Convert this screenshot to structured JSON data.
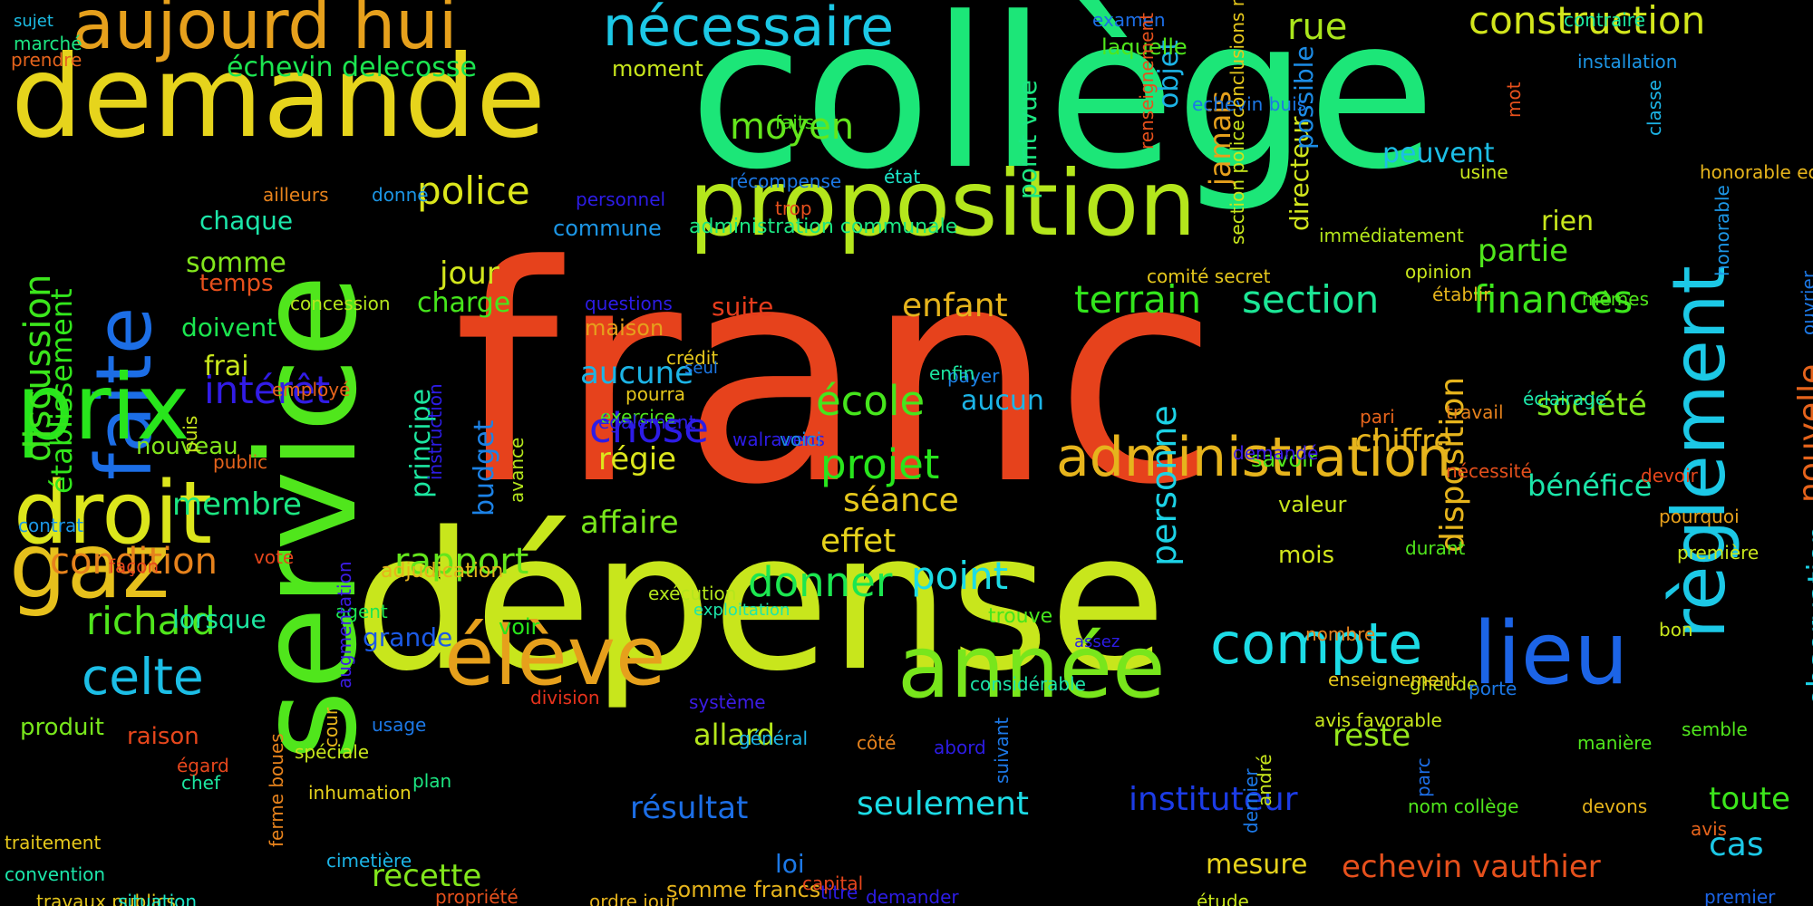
{
  "words": [
    {
      "text": "franc",
      "color": "#e6421c"
    },
    {
      "text": "dépense",
      "color": "#c8e61c"
    },
    {
      "text": "collège",
      "color": "#1ce678"
    },
    {
      "text": "service",
      "color": "#50e61c"
    },
    {
      "text": "demande",
      "color": "#e6d41c"
    },
    {
      "text": "proposition",
      "color": "#b4e61c"
    },
    {
      "text": "faite",
      "color": "#1c6ee6"
    },
    {
      "text": "prix",
      "color": "#28e61c"
    },
    {
      "text": "droit",
      "color": "#dce61c"
    },
    {
      "text": "gaz",
      "color": "#e6c01c"
    },
    {
      "text": "aujourd hui",
      "color": "#e6a01c"
    },
    {
      "text": "nécessaire",
      "color": "#1cc8e6"
    },
    {
      "text": "administration",
      "color": "#e6b41c"
    },
    {
      "text": "année",
      "color": "#78e61c"
    },
    {
      "text": "élève",
      "color": "#e6a01c"
    },
    {
      "text": "lieu",
      "color": "#1c64e6"
    },
    {
      "text": "règlement",
      "color": "#1cc8e6"
    },
    {
      "text": "compte",
      "color": "#1cdce6"
    },
    {
      "text": "construction",
      "color": "#d2e61c"
    },
    {
      "text": "terrain",
      "color": "#32e61c"
    },
    {
      "text": "section",
      "color": "#1ce696"
    },
    {
      "text": "finances",
      "color": "#3ce61c"
    },
    {
      "text": "discussion",
      "color": "#3ce61c"
    },
    {
      "text": "établissement",
      "color": "#32e61c"
    },
    {
      "text": "celte",
      "color": "#1cbee6"
    },
    {
      "text": "richald",
      "color": "#50e61c"
    },
    {
      "text": "condition",
      "color": "#e6821c"
    },
    {
      "text": "rapport",
      "color": "#64e61c"
    },
    {
      "text": "point",
      "color": "#1cdce6"
    },
    {
      "text": "donner",
      "color": "#1ce650"
    },
    {
      "text": "projet",
      "color": "#28e61c"
    },
    {
      "text": "école",
      "color": "#46e61c"
    },
    {
      "text": "chose",
      "color": "#2d1ce6"
    },
    {
      "text": "intérêt",
      "color": "#321ce6"
    },
    {
      "text": "police",
      "color": "#dce61c"
    },
    {
      "text": "moyen",
      "color": "#64e61c"
    },
    {
      "text": "rue",
      "color": "#aae61c"
    },
    {
      "text": "personne",
      "color": "#1cd2e6"
    },
    {
      "text": "disposition",
      "color": "#e6b41c"
    },
    {
      "text": "directeur",
      "color": "#d2e61c"
    },
    {
      "text": "nouvelle",
      "color": "#e6641c"
    },
    {
      "text": "observation",
      "color": "#1cd2e6"
    },
    {
      "text": "principe",
      "color": "#1ce6a0"
    },
    {
      "text": "budget",
      "color": "#1c82e6"
    },
    {
      "text": "chiffre",
      "color": "#e6b41c"
    },
    {
      "text": "société",
      "color": "#82e61c"
    },
    {
      "text": "bénéfice",
      "color": "#1ce6aa"
    },
    {
      "text": "enfant",
      "color": "#e6b41c"
    },
    {
      "text": "séance",
      "color": "#e6c81c"
    },
    {
      "text": "effet",
      "color": "#e6d21c"
    },
    {
      "text": "affaire",
      "color": "#78e61c"
    },
    {
      "text": "régie",
      "color": "#dce61c"
    },
    {
      "text": "aucune",
      "color": "#1cb4e6"
    },
    {
      "text": "aucun",
      "color": "#1cb4e6"
    },
    {
      "text": "suite",
      "color": "#e63c1c"
    },
    {
      "text": "partie",
      "color": "#50e61c"
    },
    {
      "text": "toute",
      "color": "#3ce61c"
    },
    {
      "text": "cas",
      "color": "#1cc8e6"
    },
    {
      "text": "seulement",
      "color": "#1cdce6"
    },
    {
      "text": "instituteur",
      "color": "#1c3ce6"
    },
    {
      "text": "résultat",
      "color": "#1c6ee6"
    },
    {
      "text": "allard",
      "color": "#b4e61c"
    },
    {
      "text": "recette",
      "color": "#82e61c"
    },
    {
      "text": "reste",
      "color": "#96e61c"
    },
    {
      "text": "echevin vauthier",
      "color": "#e6501c"
    },
    {
      "text": "mesure",
      "color": "#e6d21c"
    },
    {
      "text": "somme francs",
      "color": "#e6b41c"
    },
    {
      "text": "loi",
      "color": "#1c78e6"
    },
    {
      "text": "jour",
      "color": "#d2e61c"
    },
    {
      "text": "charge",
      "color": "#46e61c"
    },
    {
      "text": "membre",
      "color": "#1ce682"
    },
    {
      "text": "somme",
      "color": "#82e61c"
    },
    {
      "text": "chaque",
      "color": "#1ce6aa"
    },
    {
      "text": "temps",
      "color": "#e6501c"
    },
    {
      "text": "doivent",
      "color": "#1ce650"
    },
    {
      "text": "frai",
      "color": "#c8e61c"
    },
    {
      "text": "nouveau",
      "color": "#82e61c"
    },
    {
      "text": "lorsque",
      "color": "#1ce6a0"
    },
    {
      "text": "raison",
      "color": "#e6461c"
    },
    {
      "text": "produit",
      "color": "#78e61c"
    },
    {
      "text": "grande",
      "color": "#1c5ae6"
    },
    {
      "text": "échevin delecosse",
      "color": "#1ce650"
    },
    {
      "text": "peuvent",
      "color": "#1cbee6"
    },
    {
      "text": "rien",
      "color": "#c8e61c"
    },
    {
      "text": "jamais",
      "color": "#e6a01c"
    },
    {
      "text": "objet",
      "color": "#1cb4e6"
    },
    {
      "text": "possible",
      "color": "#1c8ce6"
    },
    {
      "text": "point vue",
      "color": "#1ce682"
    },
    {
      "text": "voir",
      "color": "#28e61c"
    },
    {
      "text": "mois",
      "color": "#d2e61c"
    },
    {
      "text": "savoir",
      "color": "#50e61c"
    },
    {
      "text": "valeur",
      "color": "#c8e61c"
    },
    {
      "text": "moment",
      "color": "#c8e61c"
    },
    {
      "text": "laquelle",
      "color": "#50e61c"
    },
    {
      "text": "examen",
      "color": "#1c6ee6"
    },
    {
      "text": "contraire",
      "color": "#1ce6a0"
    },
    {
      "text": "installation",
      "color": "#1c96e6"
    },
    {
      "text": "marché",
      "color": "#1ce682"
    },
    {
      "text": "sujet",
      "color": "#1cbee6"
    },
    {
      "text": "prendre",
      "color": "#e6641c"
    },
    {
      "text": "faits",
      "color": "#50e61c"
    },
    {
      "text": "récompense",
      "color": "#1c78e6"
    },
    {
      "text": "état",
      "color": "#1ce6c8"
    },
    {
      "text": "trop",
      "color": "#e6501c"
    },
    {
      "text": "personnel",
      "color": "#2d1ce6"
    },
    {
      "text": "commune",
      "color": "#1c96e6"
    },
    {
      "text": "administration communale",
      "color": "#1ce682"
    },
    {
      "text": "immédiatement",
      "color": "#b4e61c"
    },
    {
      "text": "donné",
      "color": "#1c96e6"
    },
    {
      "text": "ailleurs",
      "color": "#e6821c"
    },
    {
      "text": "concession",
      "color": "#b4e61c"
    },
    {
      "text": "questions",
      "color": "#2d1ce6"
    },
    {
      "text": "maison",
      "color": "#e6a01c"
    },
    {
      "text": "crédit",
      "color": "#e6c81c"
    },
    {
      "text": "seul",
      "color": "#1c78e6"
    },
    {
      "text": "payer",
      "color": "#1c82e6"
    },
    {
      "text": "enfin",
      "color": "#1ce6a0"
    },
    {
      "text": "pourra",
      "color": "#e6c81c"
    },
    {
      "text": "exercice",
      "color": "#50e61c"
    },
    {
      "text": "également",
      "color": "#2d1ce6"
    },
    {
      "text": "walravens",
      "color": "#2d1ce6"
    },
    {
      "text": "voici",
      "color": "#1c8ce6"
    },
    {
      "text": "employé",
      "color": "#e6641c"
    },
    {
      "text": "public",
      "color": "#e6641c"
    },
    {
      "text": "puis",
      "color": "#c8e61c"
    },
    {
      "text": "avance",
      "color": "#b4e61c"
    },
    {
      "text": "contrat",
      "color": "#1c96e6"
    },
    {
      "text": "façon",
      "color": "#e6461c"
    },
    {
      "text": "vote",
      "color": "#e6461c"
    },
    {
      "text": "instruction",
      "color": "#2d1ce6"
    },
    {
      "text": "adjudication",
      "color": "#e6b41c"
    },
    {
      "text": "agent",
      "color": "#1ce650"
    },
    {
      "text": "spéciale",
      "color": "#c8e61c"
    },
    {
      "text": "trouve",
      "color": "#46e61c"
    },
    {
      "text": "exécution",
      "color": "#b4e61c"
    },
    {
      "text": "assez",
      "color": "#2d1ce6"
    },
    {
      "text": "considérable",
      "color": "#1ce6aa"
    },
    {
      "text": "exploitation",
      "color": "#1ce6aa"
    },
    {
      "text": "système",
      "color": "#3c1ce6"
    },
    {
      "text": "augmentation",
      "color": "#3c1ce6"
    },
    {
      "text": "division",
      "color": "#e6321c"
    },
    {
      "text": "cour",
      "color": "#e6b41c"
    },
    {
      "text": "usage",
      "color": "#1c78e6"
    },
    {
      "text": "plan",
      "color": "#1ce682"
    },
    {
      "text": "titre",
      "color": "#2d1ce6"
    },
    {
      "text": "côté",
      "color": "#e6821c"
    },
    {
      "text": "capital",
      "color": "#e6461c"
    },
    {
      "text": "général",
      "color": "#1cb4e6"
    },
    {
      "text": "cimetière",
      "color": "#1cb4e6"
    },
    {
      "text": "ferme boues",
      "color": "#e6821c"
    },
    {
      "text": "égard",
      "color": "#e6461c"
    },
    {
      "text": "chef",
      "color": "#1ce6a0"
    },
    {
      "text": "inhumation",
      "color": "#e6d21c"
    },
    {
      "text": "traitement",
      "color": "#e6c81c"
    },
    {
      "text": "convention",
      "color": "#1ce6aa"
    },
    {
      "text": "travaux publics",
      "color": "#e6c81c"
    },
    {
      "text": "situation",
      "color": "#1ce6c8"
    },
    {
      "text": "propriété",
      "color": "#e6501c"
    },
    {
      "text": "ordre jour",
      "color": "#e6b41c"
    },
    {
      "text": "demander",
      "color": "#2d1ce6"
    },
    {
      "text": "étude",
      "color": "#c8e61c"
    },
    {
      "text": "premier",
      "color": "#1c64e6"
    },
    {
      "text": "avis",
      "color": "#e6641c"
    },
    {
      "text": "devons",
      "color": "#e6b41c"
    },
    {
      "text": "semble",
      "color": "#50e61c"
    },
    {
      "text": "manière",
      "color": "#50e61c"
    },
    {
      "text": "bon",
      "color": "#c8e61c"
    },
    {
      "text": "nombre",
      "color": "#e6821c"
    },
    {
      "text": "gheude",
      "color": "#c8e61c"
    },
    {
      "text": "porte",
      "color": "#1c78e6"
    },
    {
      "text": "enseignement",
      "color": "#e6c81c"
    },
    {
      "text": "avis favorable",
      "color": "#c8e61c"
    },
    {
      "text": "nom collège",
      "color": "#50e61c"
    },
    {
      "text": "dernier",
      "color": "#1c78e6"
    },
    {
      "text": "andré",
      "color": "#c8e61c"
    },
    {
      "text": "parc",
      "color": "#1c6ee6"
    },
    {
      "text": "suivant",
      "color": "#1c78e6"
    },
    {
      "text": "abord",
      "color": "#2d1ce6"
    },
    {
      "text": "première",
      "color": "#c8e61c"
    },
    {
      "text": "pourquoi",
      "color": "#e6a01c"
    },
    {
      "text": "devoir",
      "color": "#e6461c"
    },
    {
      "text": "nécessité",
      "color": "#e6501c"
    },
    {
      "text": "durant",
      "color": "#50e61c"
    },
    {
      "text": "demandé",
      "color": "#3c1ce6"
    },
    {
      "text": "pari",
      "color": "#e6641c"
    },
    {
      "text": "éclairage",
      "color": "#1ce6aa"
    },
    {
      "text": "travail",
      "color": "#e6821c"
    },
    {
      "text": "opinion",
      "color": "#c8e61c"
    },
    {
      "text": "mêmes",
      "color": "#50e61c"
    },
    {
      "text": "honorable",
      "color": "#1c96e6"
    },
    {
      "text": "honorable echevin",
      "color": "#e6b41c"
    },
    {
      "text": "usine",
      "color": "#c8e61c"
    },
    {
      "text": "classe",
      "color": "#1cb4e6"
    },
    {
      "text": "mot",
      "color": "#e6501c"
    },
    {
      "text": "établir",
      "color": "#e6b41c"
    },
    {
      "text": "ouvrier",
      "color": "#1c78e6"
    },
    {
      "text": "comité secret",
      "color": "#e6c81c"
    },
    {
      "text": "section police",
      "color": "#c8e61c"
    },
    {
      "text": "echevin buis",
      "color": "#1c78e6"
    },
    {
      "text": "conclusions rapport",
      "color": "#e6c81c"
    },
    {
      "text": "renseignement",
      "color": "#e6501c"
    }
  ]
}
